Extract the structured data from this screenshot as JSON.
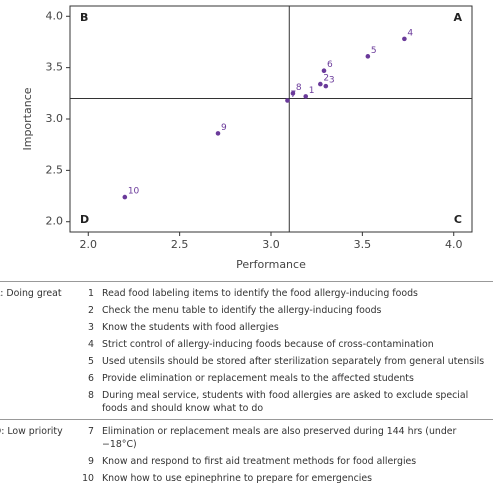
{
  "chart_data": {
    "type": "scatter",
    "xlabel": "Performance",
    "ylabel": "Importance",
    "xlim": [
      1.9,
      4.1
    ],
    "ylim": [
      1.9,
      4.1
    ],
    "xticks": [
      {
        "value": 2,
        "label": "2.0"
      },
      {
        "value": 2.5,
        "label": "2.5"
      },
      {
        "value": 3,
        "label": "3.0"
      },
      {
        "value": 3.5,
        "label": "3.5"
      },
      {
        "value": 4,
        "label": "4.0"
      }
    ],
    "yticks": [
      {
        "value": 2,
        "label": "2.0"
      },
      {
        "value": 2.5,
        "label": "2.5"
      },
      {
        "value": 3,
        "label": "3.0"
      },
      {
        "value": 3.5,
        "label": "3.5"
      },
      {
        "value": 4,
        "label": "4.0"
      }
    ],
    "reference_x": 3.1,
    "reference_y": 3.2,
    "color": "#6a3a9a",
    "x": [
      3.19,
      3.27,
      3.3,
      3.73,
      3.53,
      3.29,
      3.09,
      3.12,
      2.71,
      2.2
    ],
    "values": [
      3.22,
      3.34,
      3.32,
      3.78,
      3.61,
      3.47,
      3.18,
      3.25,
      2.86,
      2.24
    ],
    "labels": [
      "1",
      "2",
      "3",
      "4",
      "5",
      "6",
      "7",
      "8",
      "9",
      "10"
    ],
    "quadrants": {
      "top_right": "A",
      "top_left": "B",
      "bottom_right": "C",
      "bottom_left": "D"
    }
  },
  "table": {
    "groups": [
      {
        "label": "A: Doing great",
        "items": [
          {
            "number": "1",
            "text": "Read food labeling items to identify the food allergy-inducing foods"
          },
          {
            "number": "2",
            "text": "Check the menu table to identify the allergy-inducing foods"
          },
          {
            "number": "3",
            "text": "Know the students with food allergies"
          },
          {
            "number": "4",
            "text": "Strict control of allergy-inducing foods because of cross-contamination"
          },
          {
            "number": "5",
            "text": "Used utensils should be stored after sterilization separately from general utensils"
          },
          {
            "number": "6",
            "text": "Provide elimination or replacement meals to the affected students"
          },
          {
            "number": "8",
            "text": "During meal service, students with food allergies are asked to exclude special foods and should know what to do"
          }
        ]
      },
      {
        "label": "D: Low priority",
        "items": [
          {
            "number": "7",
            "text": "Elimination or replacement meals are also preserved during 144 hrs (under −18°C)"
          },
          {
            "number": "9",
            "text": "Know and respond to first aid treatment methods for food allergies"
          },
          {
            "number": "10",
            "text": "Know how to use epinephrine to prepare for emergencies"
          }
        ]
      }
    ]
  }
}
